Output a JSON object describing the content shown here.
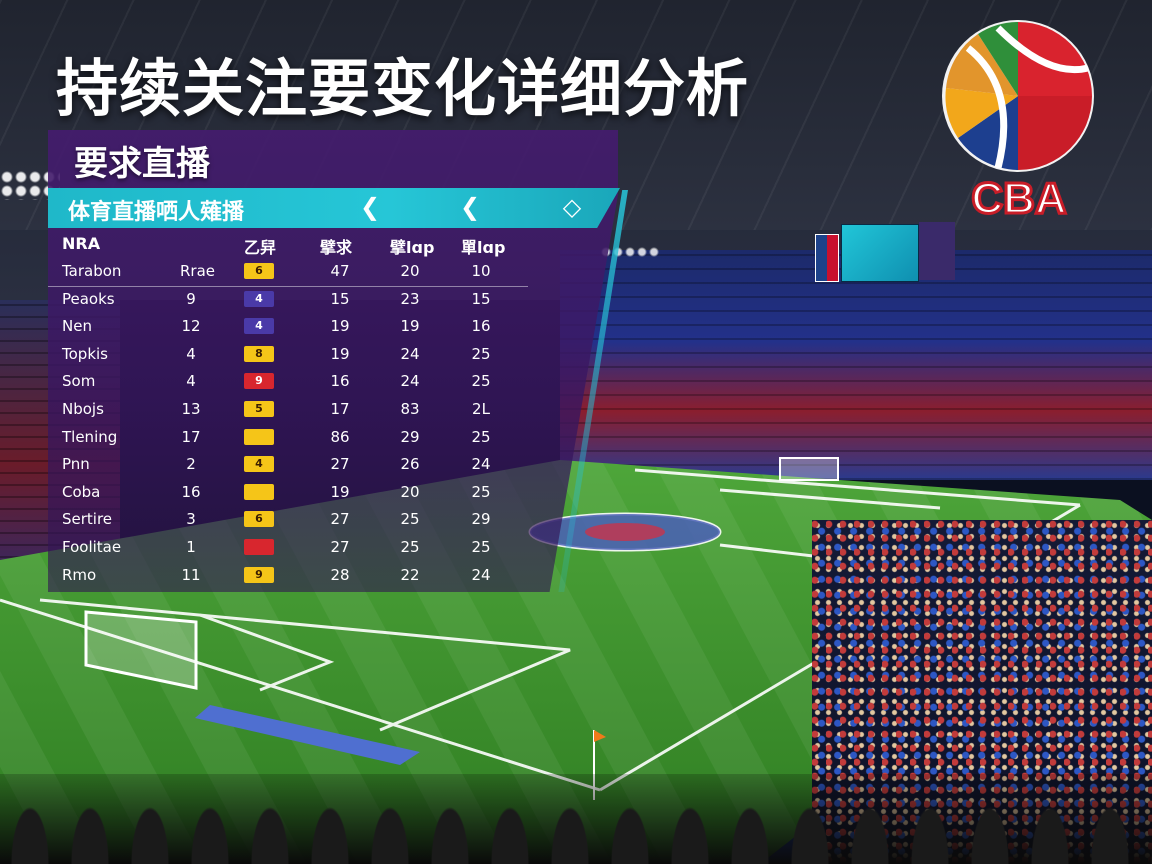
{
  "title": "持续关注要变化详细分析",
  "logo": {
    "text": "CBA",
    "icon": "cba-basketball-logo"
  },
  "scoreboard": {
    "icon": "nba-logo"
  },
  "panel": {
    "heading": "要求直播",
    "subbar": {
      "label": "体育直播哂人薙播",
      "icons": [
        "chevron-left-icon",
        "chevron-left-icon",
        "diamond-icon"
      ],
      "glyphs": [
        "❮",
        "❮",
        "◇"
      ]
    },
    "headers": [
      "NRA",
      "",
      "乙舁",
      "擘求",
      "擘lɑp",
      "單lɑp"
    ],
    "rows": [
      {
        "name": "Tarabon",
        "c1": "Rrae",
        "badge": "6",
        "badge_color": "#f5c518",
        "c3": "47",
        "c4": "20",
        "c5": "10"
      },
      {
        "name": "Peaoks",
        "c1": "9",
        "badge": "4",
        "badge_color": "#4a3aa8",
        "c3": "15",
        "c4": "23",
        "c5": "15"
      },
      {
        "name": "Nen",
        "c1": "12",
        "badge": "4",
        "badge_color": "#4a3aa8",
        "c3": "19",
        "c4": "19",
        "c5": "16"
      },
      {
        "name": "Topkis",
        "c1": "4",
        "badge": "8",
        "badge_color": "#f5c518",
        "c3": "19",
        "c4": "24",
        "c5": "25"
      },
      {
        "name": "Som",
        "c1": "4",
        "badge": "9",
        "badge_color": "#d8262e",
        "c3": "16",
        "c4": "24",
        "c5": "25"
      },
      {
        "name": "Nbojs",
        "c1": "13",
        "badge": "5",
        "badge_color": "#f5c518",
        "c3": "17",
        "c4": "83",
        "c5": "2L"
      },
      {
        "name": "Tlening",
        "c1": "17",
        "badge": "",
        "badge_color": "#f5c518",
        "c3": "86",
        "c4": "29",
        "c5": "25"
      },
      {
        "name": "Pnn",
        "c1": "2",
        "badge": "4",
        "badge_color": "#f5c518",
        "c3": "27",
        "c4": "26",
        "c5": "24"
      },
      {
        "name": "Coba",
        "c1": "16",
        "badge": "",
        "badge_color": "#f5c518",
        "c3": "19",
        "c4": "20",
        "c5": "25"
      },
      {
        "name": "Sertire",
        "c1": "3",
        "badge": "6",
        "badge_color": "#f5c518",
        "c3": "27",
        "c4": "25",
        "c5": "29"
      },
      {
        "name": "Foolitae",
        "c1": "1",
        "badge": "",
        "badge_color": "#d8262e",
        "c3": "27",
        "c4": "25",
        "c5": "25"
      },
      {
        "name": "Rmo",
        "c1": "11",
        "badge": "9",
        "badge_color": "#f5c518",
        "c3": "28",
        "c4": "22",
        "c5": "24"
      }
    ]
  },
  "colors": {
    "panel": "#441c6e",
    "accent": "#26c6d7",
    "pitch": "#3f8f2a"
  }
}
